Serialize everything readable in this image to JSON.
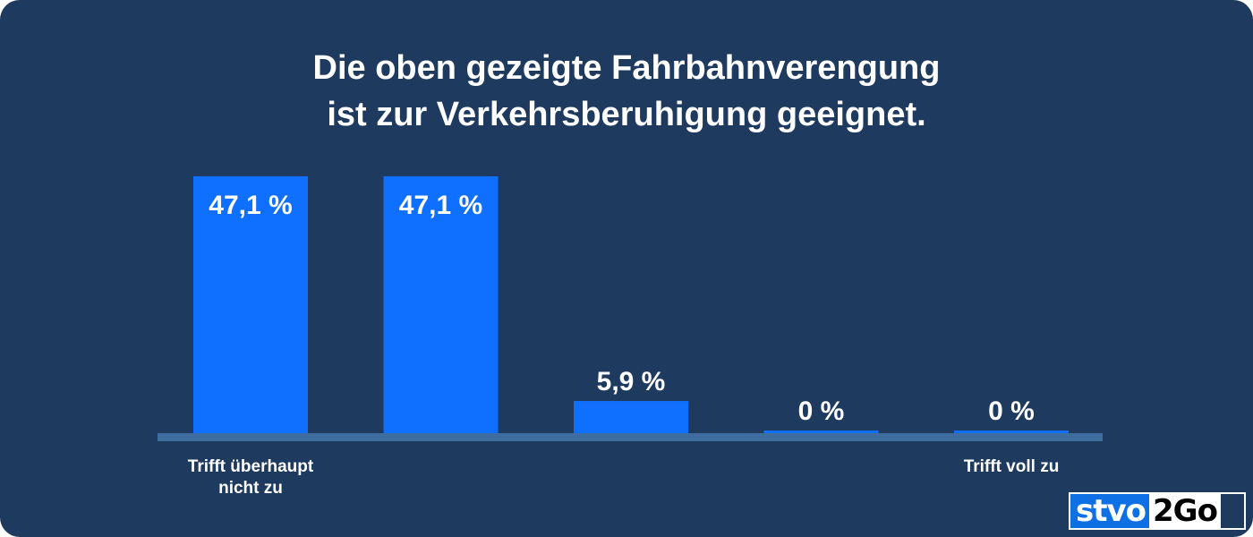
{
  "colors": {
    "background": "#1f3a5f",
    "bar": "#0f70ff",
    "baseline": "#3f6da0",
    "text": "#ffffff"
  },
  "chart_data": {
    "type": "bar",
    "title_lines": [
      "Die oben gezeigte Fahrbahnverengung",
      "ist zur Verkehrsberuhigung geeignet."
    ],
    "categories": [
      "Trifft überhaupt nicht zu",
      "",
      "",
      "",
      "Trifft voll zu"
    ],
    "values": [
      47.1,
      47.1,
      5.9,
      0,
      0
    ],
    "data_labels": [
      "47,1 %",
      "47,1 %",
      "5,9 %",
      "0 %",
      "0 %"
    ],
    "ylim": [
      0,
      47.1
    ],
    "grid": false,
    "legend": "none"
  },
  "logo": {
    "part1": "stvo",
    "part2": "2Go"
  }
}
